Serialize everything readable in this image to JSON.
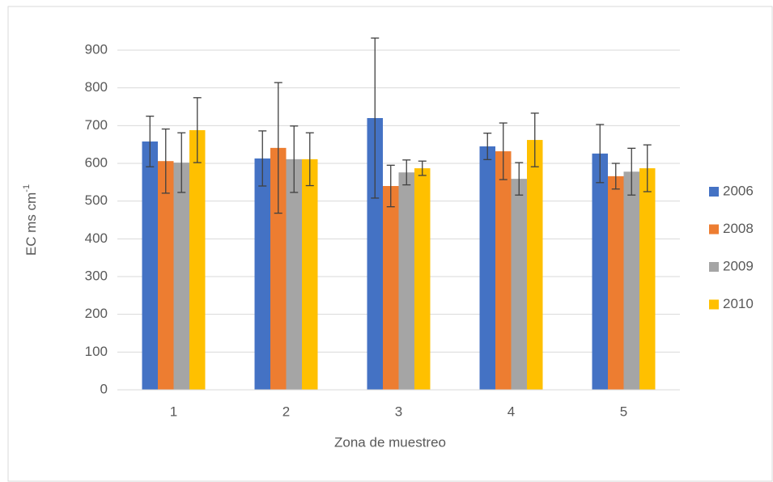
{
  "chart_data": {
    "type": "bar",
    "x_label": "Zona de muestreo",
    "y_label": "EC ms cm",
    "y_label_sup": "-1",
    "categories": [
      "1",
      "2",
      "3",
      "4",
      "5"
    ],
    "series": [
      {
        "name": "2006",
        "color": "#4472c4",
        "values": [
          658,
          613,
          720,
          645,
          626
        ],
        "errors": [
          67,
          73,
          212,
          35,
          77
        ]
      },
      {
        "name": "2008",
        "color": "#ed7d31",
        "values": [
          606,
          641,
          540,
          632,
          566
        ],
        "errors": [
          85,
          173,
          55,
          75,
          34
        ]
      },
      {
        "name": "2009",
        "color": "#a5a5a5",
        "values": [
          602,
          611,
          576,
          559,
          578
        ],
        "errors": [
          79,
          88,
          33,
          43,
          62
        ]
      },
      {
        "name": "2010",
        "color": "#ffc000",
        "values": [
          688,
          611,
          587,
          662,
          587
        ],
        "errors": [
          86,
          70,
          19,
          71,
          62
        ]
      }
    ],
    "ylim": [
      0,
      900
    ],
    "yticks": [
      0,
      100,
      200,
      300,
      400,
      500,
      600,
      700,
      800,
      900
    ],
    "grid": true,
    "legend": "right"
  }
}
